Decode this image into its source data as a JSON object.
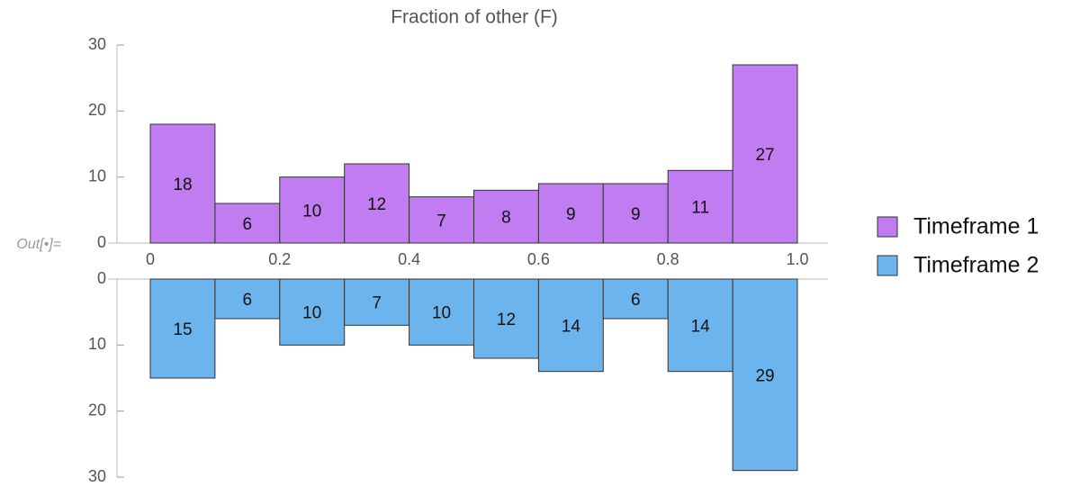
{
  "cell_label": "Out[•]=",
  "chart_data": {
    "type": "histogram",
    "title": "Fraction of other (F)",
    "bins": [
      0,
      0.1,
      0.2,
      0.3,
      0.4,
      0.5,
      0.6,
      0.7,
      0.8,
      0.9,
      1
    ],
    "series": [
      {
        "name": "Timeframe 1",
        "color": "#c07cf0",
        "values": [
          18,
          6,
          10,
          12,
          7,
          8,
          9,
          9,
          11,
          27
        ]
      },
      {
        "name": "Timeframe 2",
        "color": "#6cb4ee",
        "values": [
          15,
          6,
          10,
          7,
          10,
          12,
          14,
          6,
          14,
          29
        ]
      }
    ],
    "xlim": [
      0,
      1
    ],
    "xticks": [
      0,
      0.2,
      0.4,
      0.6,
      0.8,
      {
        "value": 1,
        "label": "1.0"
      }
    ],
    "ylim": [
      0,
      30
    ],
    "yticks": [
      0,
      10,
      20,
      30
    ],
    "legend": "right"
  }
}
